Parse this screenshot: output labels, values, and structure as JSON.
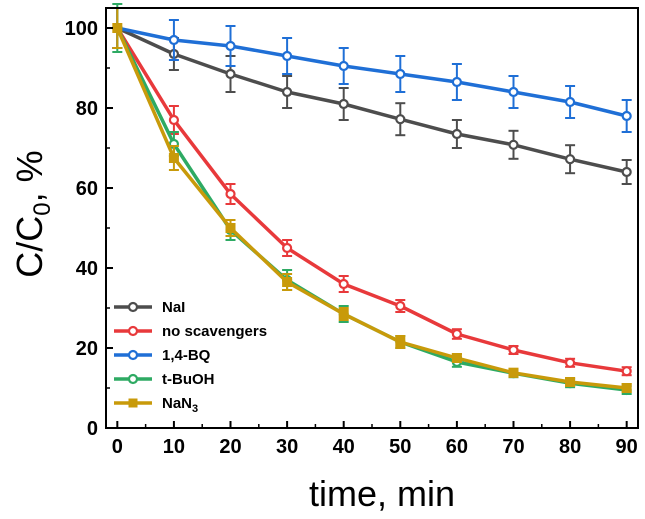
{
  "chart_data": {
    "type": "line",
    "title": "",
    "xlabel": "time, min",
    "ylabel": {
      "main": "C/C",
      "sub": "0",
      "tail": ", %"
    },
    "xlim": [
      -2,
      92
    ],
    "ylim": [
      0,
      105
    ],
    "x_ticks": [
      0,
      10,
      20,
      30,
      40,
      50,
      60,
      70,
      80,
      90
    ],
    "y_ticks": [
      0,
      20,
      40,
      60,
      80,
      100
    ],
    "x": [
      0,
      10,
      20,
      30,
      40,
      50,
      60,
      70,
      80,
      90
    ],
    "legend_position": "bottom-left",
    "series": [
      {
        "name": "NaI",
        "label": "NaI",
        "color": "#4d4d4d",
        "marker": "circle",
        "values": [
          100,
          93.5,
          88.5,
          84,
          81,
          77.2,
          73.5,
          70.8,
          67.2,
          64
        ],
        "errors": [
          5,
          4,
          4.5,
          4,
          4,
          4,
          3.5,
          3.5,
          3.5,
          3
        ]
      },
      {
        "name": "no scavengers",
        "label": "no scavengers",
        "color": "#e8393b",
        "marker": "circle",
        "values": [
          100,
          77,
          58.5,
          45,
          36,
          30.5,
          23.5,
          19.5,
          16.3,
          14.2
        ],
        "errors": [
          5,
          3.5,
          2.5,
          2,
          2,
          1.5,
          1.2,
          1,
          1,
          1
        ]
      },
      {
        "name": "1,4-BQ",
        "label": "1,4-BQ",
        "color": "#1f6fd6",
        "marker": "circle",
        "values": [
          100,
          97,
          95.5,
          93,
          90.5,
          88.5,
          86.5,
          84,
          81.5,
          78
        ],
        "errors": [
          5,
          5,
          5,
          4.5,
          4.5,
          4.5,
          4.5,
          4,
          4,
          4
        ]
      },
      {
        "name": "t-BuOH",
        "label": "t-BuOH",
        "color": "#2eaa63",
        "marker": "circle",
        "values": [
          100,
          71,
          49.5,
          37,
          28.5,
          21.5,
          16.5,
          13.7,
          11.2,
          9.5
        ],
        "errors": [
          6,
          3,
          2.5,
          2.5,
          2,
          1.5,
          1.2,
          1,
          1,
          1
        ]
      },
      {
        "name": "NaN3",
        "label": {
          "main": "NaN",
          "sub": "3"
        },
        "color": "#c89a0a",
        "marker": "square",
        "values": [
          100,
          67.5,
          50,
          36.5,
          28.5,
          21.5,
          17.5,
          13.8,
          11.5,
          10
        ],
        "errors": [
          5,
          3,
          2,
          2,
          1.5,
          1.5,
          1,
          1,
          1,
          1
        ]
      }
    ]
  }
}
